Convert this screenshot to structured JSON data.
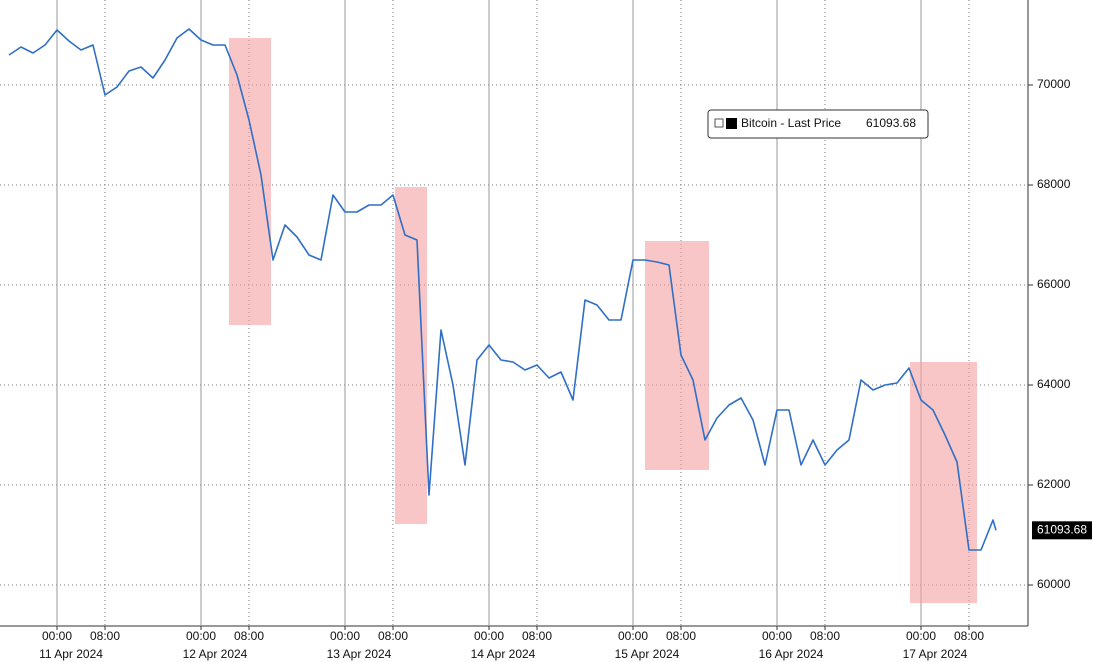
{
  "chart_data": {
    "type": "line",
    "series": [
      {
        "name": "Bitcoin - Last Price",
        "color": "#2f6fc6",
        "x": [
          "2024-04-10T16:00",
          "2024-04-10T18:00",
          "2024-04-10T20:00",
          "2024-04-10T22:00",
          "2024-04-11T00:00",
          "2024-04-11T02:00",
          "2024-04-11T04:00",
          "2024-04-11T06:00",
          "2024-04-11T08:00",
          "2024-04-11T10:00",
          "2024-04-11T12:00",
          "2024-04-11T14:00",
          "2024-04-11T16:00",
          "2024-04-11T18:00",
          "2024-04-11T20:00",
          "2024-04-11T22:00",
          "2024-04-12T00:00",
          "2024-04-12T02:00",
          "2024-04-12T04:00",
          "2024-04-12T06:00",
          "2024-04-12T08:00",
          "2024-04-12T10:00",
          "2024-04-12T12:00",
          "2024-04-12T14:00",
          "2024-04-12T16:00",
          "2024-04-12T18:00",
          "2024-04-12T20:00",
          "2024-04-12T22:00",
          "2024-04-13T00:00",
          "2024-04-13T02:00",
          "2024-04-13T04:00",
          "2024-04-13T06:00",
          "2024-04-13T08:00",
          "2024-04-13T10:00",
          "2024-04-13T12:00",
          "2024-04-13T14:00",
          "2024-04-13T16:00",
          "2024-04-13T18:00",
          "2024-04-13T20:00",
          "2024-04-13T22:00",
          "2024-04-14T00:00",
          "2024-04-14T02:00",
          "2024-04-14T04:00",
          "2024-04-14T06:00",
          "2024-04-14T08:00",
          "2024-04-14T10:00",
          "2024-04-14T12:00",
          "2024-04-14T14:00",
          "2024-04-14T16:00",
          "2024-04-14T18:00",
          "2024-04-14T20:00",
          "2024-04-14T22:00",
          "2024-04-15T00:00",
          "2024-04-15T02:00",
          "2024-04-15T04:00",
          "2024-04-15T06:00",
          "2024-04-15T08:00",
          "2024-04-15T10:00",
          "2024-04-15T12:00",
          "2024-04-15T14:00",
          "2024-04-15T16:00",
          "2024-04-15T18:00",
          "2024-04-15T20:00",
          "2024-04-15T22:00",
          "2024-04-16T00:00",
          "2024-04-16T02:00",
          "2024-04-16T04:00",
          "2024-04-16T06:00",
          "2024-04-16T08:00",
          "2024-04-16T10:00",
          "2024-04-16T12:00",
          "2024-04-16T14:00",
          "2024-04-16T16:00",
          "2024-04-16T18:00",
          "2024-04-16T20:00",
          "2024-04-16T22:00",
          "2024-04-17T00:00",
          "2024-04-17T02:00",
          "2024-04-17T04:00",
          "2024-04-17T06:00",
          "2024-04-17T08:00",
          "2024-04-17T10:00",
          "2024-04-17T12:00",
          "2024-04-17T12:30"
        ],
        "values": [
          70600,
          70760,
          70640,
          70800,
          71100,
          70880,
          70700,
          70800,
          69800,
          69960,
          70280,
          70360,
          70140,
          70500,
          70940,
          71120,
          70900,
          70800,
          70800,
          70200,
          69300,
          68200,
          66500,
          67200,
          66960,
          66600,
          66500,
          67800,
          67460,
          67460,
          67600,
          67600,
          67800,
          67000,
          66900,
          61800,
          65100,
          64000,
          62400,
          64500,
          64800,
          64500,
          64460,
          64300,
          64400,
          64140,
          64260,
          63700,
          65700,
          65600,
          65300,
          65300,
          66500,
          66500,
          66460,
          66400,
          64600,
          64100,
          62900,
          63340,
          63600,
          63740,
          63300,
          62400,
          63500,
          63500,
          62400,
          62900,
          62400,
          62700,
          62900,
          64100,
          63900,
          64000,
          64040,
          64340,
          63700,
          63500,
          63000,
          62460,
          60700,
          60700,
          61300,
          61093.68
        ]
      }
    ],
    "last_value": 61093.68,
    "highlights": [
      {
        "x": [
          "2024-04-12T04:40",
          "2024-04-12T11:40"
        ],
        "y": [
          65200,
          70940
        ]
      },
      {
        "x": [
          "2024-04-13T08:20",
          "2024-04-13T13:40"
        ],
        "y": [
          61220,
          67960
        ]
      },
      {
        "x": [
          "2024-04-15T02:00",
          "2024-04-15T12:40"
        ],
        "y": [
          62300,
          66880
        ]
      },
      {
        "x": [
          "2024-04-16T22:10",
          "2024-04-17T09:20"
        ],
        "y": [
          59640,
          64460
        ]
      }
    ],
    "highlight_color": "#f4a0a0",
    "xlim": [
      "2024-04-10T14:30",
      "2024-04-17T17:50"
    ],
    "xticks": [
      {
        "value": "2024-04-11T00:00",
        "label": "00:00"
      },
      {
        "value": "2024-04-11T08:00",
        "label": "08:00"
      },
      {
        "value": "2024-04-12T00:00",
        "label": "00:00"
      },
      {
        "value": "2024-04-12T08:00",
        "label": "08:00"
      },
      {
        "value": "2024-04-13T00:00",
        "label": "00:00"
      },
      {
        "value": "2024-04-13T08:00",
        "label": "08:00"
      },
      {
        "value": "2024-04-14T00:00",
        "label": "00:00"
      },
      {
        "value": "2024-04-14T08:00",
        "label": "08:00"
      },
      {
        "value": "2024-04-15T00:00",
        "label": "00:00"
      },
      {
        "value": "2024-04-15T08:00",
        "label": "08:00"
      },
      {
        "value": "2024-04-16T00:00",
        "label": "00:00"
      },
      {
        "value": "2024-04-16T08:00",
        "label": "08:00"
      },
      {
        "value": "2024-04-17T00:00",
        "label": "00:00"
      },
      {
        "value": "2024-04-17T08:00",
        "label": "08:00"
      }
    ],
    "date_labels": [
      {
        "value": "2024-04-11T02:20",
        "label": "11 Apr 2024"
      },
      {
        "value": "2024-04-12T02:20",
        "label": "12 Apr 2024"
      },
      {
        "value": "2024-04-13T02:20",
        "label": "13 Apr 2024"
      },
      {
        "value": "2024-04-14T02:20",
        "label": "14 Apr 2024"
      },
      {
        "value": "2024-04-15T02:20",
        "label": "15 Apr 2024"
      },
      {
        "value": "2024-04-16T02:20",
        "label": "16 Apr 2024"
      },
      {
        "value": "2024-04-17T02:20",
        "label": "17 Apr 2024"
      }
    ],
    "ylim": [
      59200,
      71700
    ],
    "yticks": [
      60000,
      62000,
      64000,
      66000,
      68000,
      70000
    ],
    "grid": true
  }
}
